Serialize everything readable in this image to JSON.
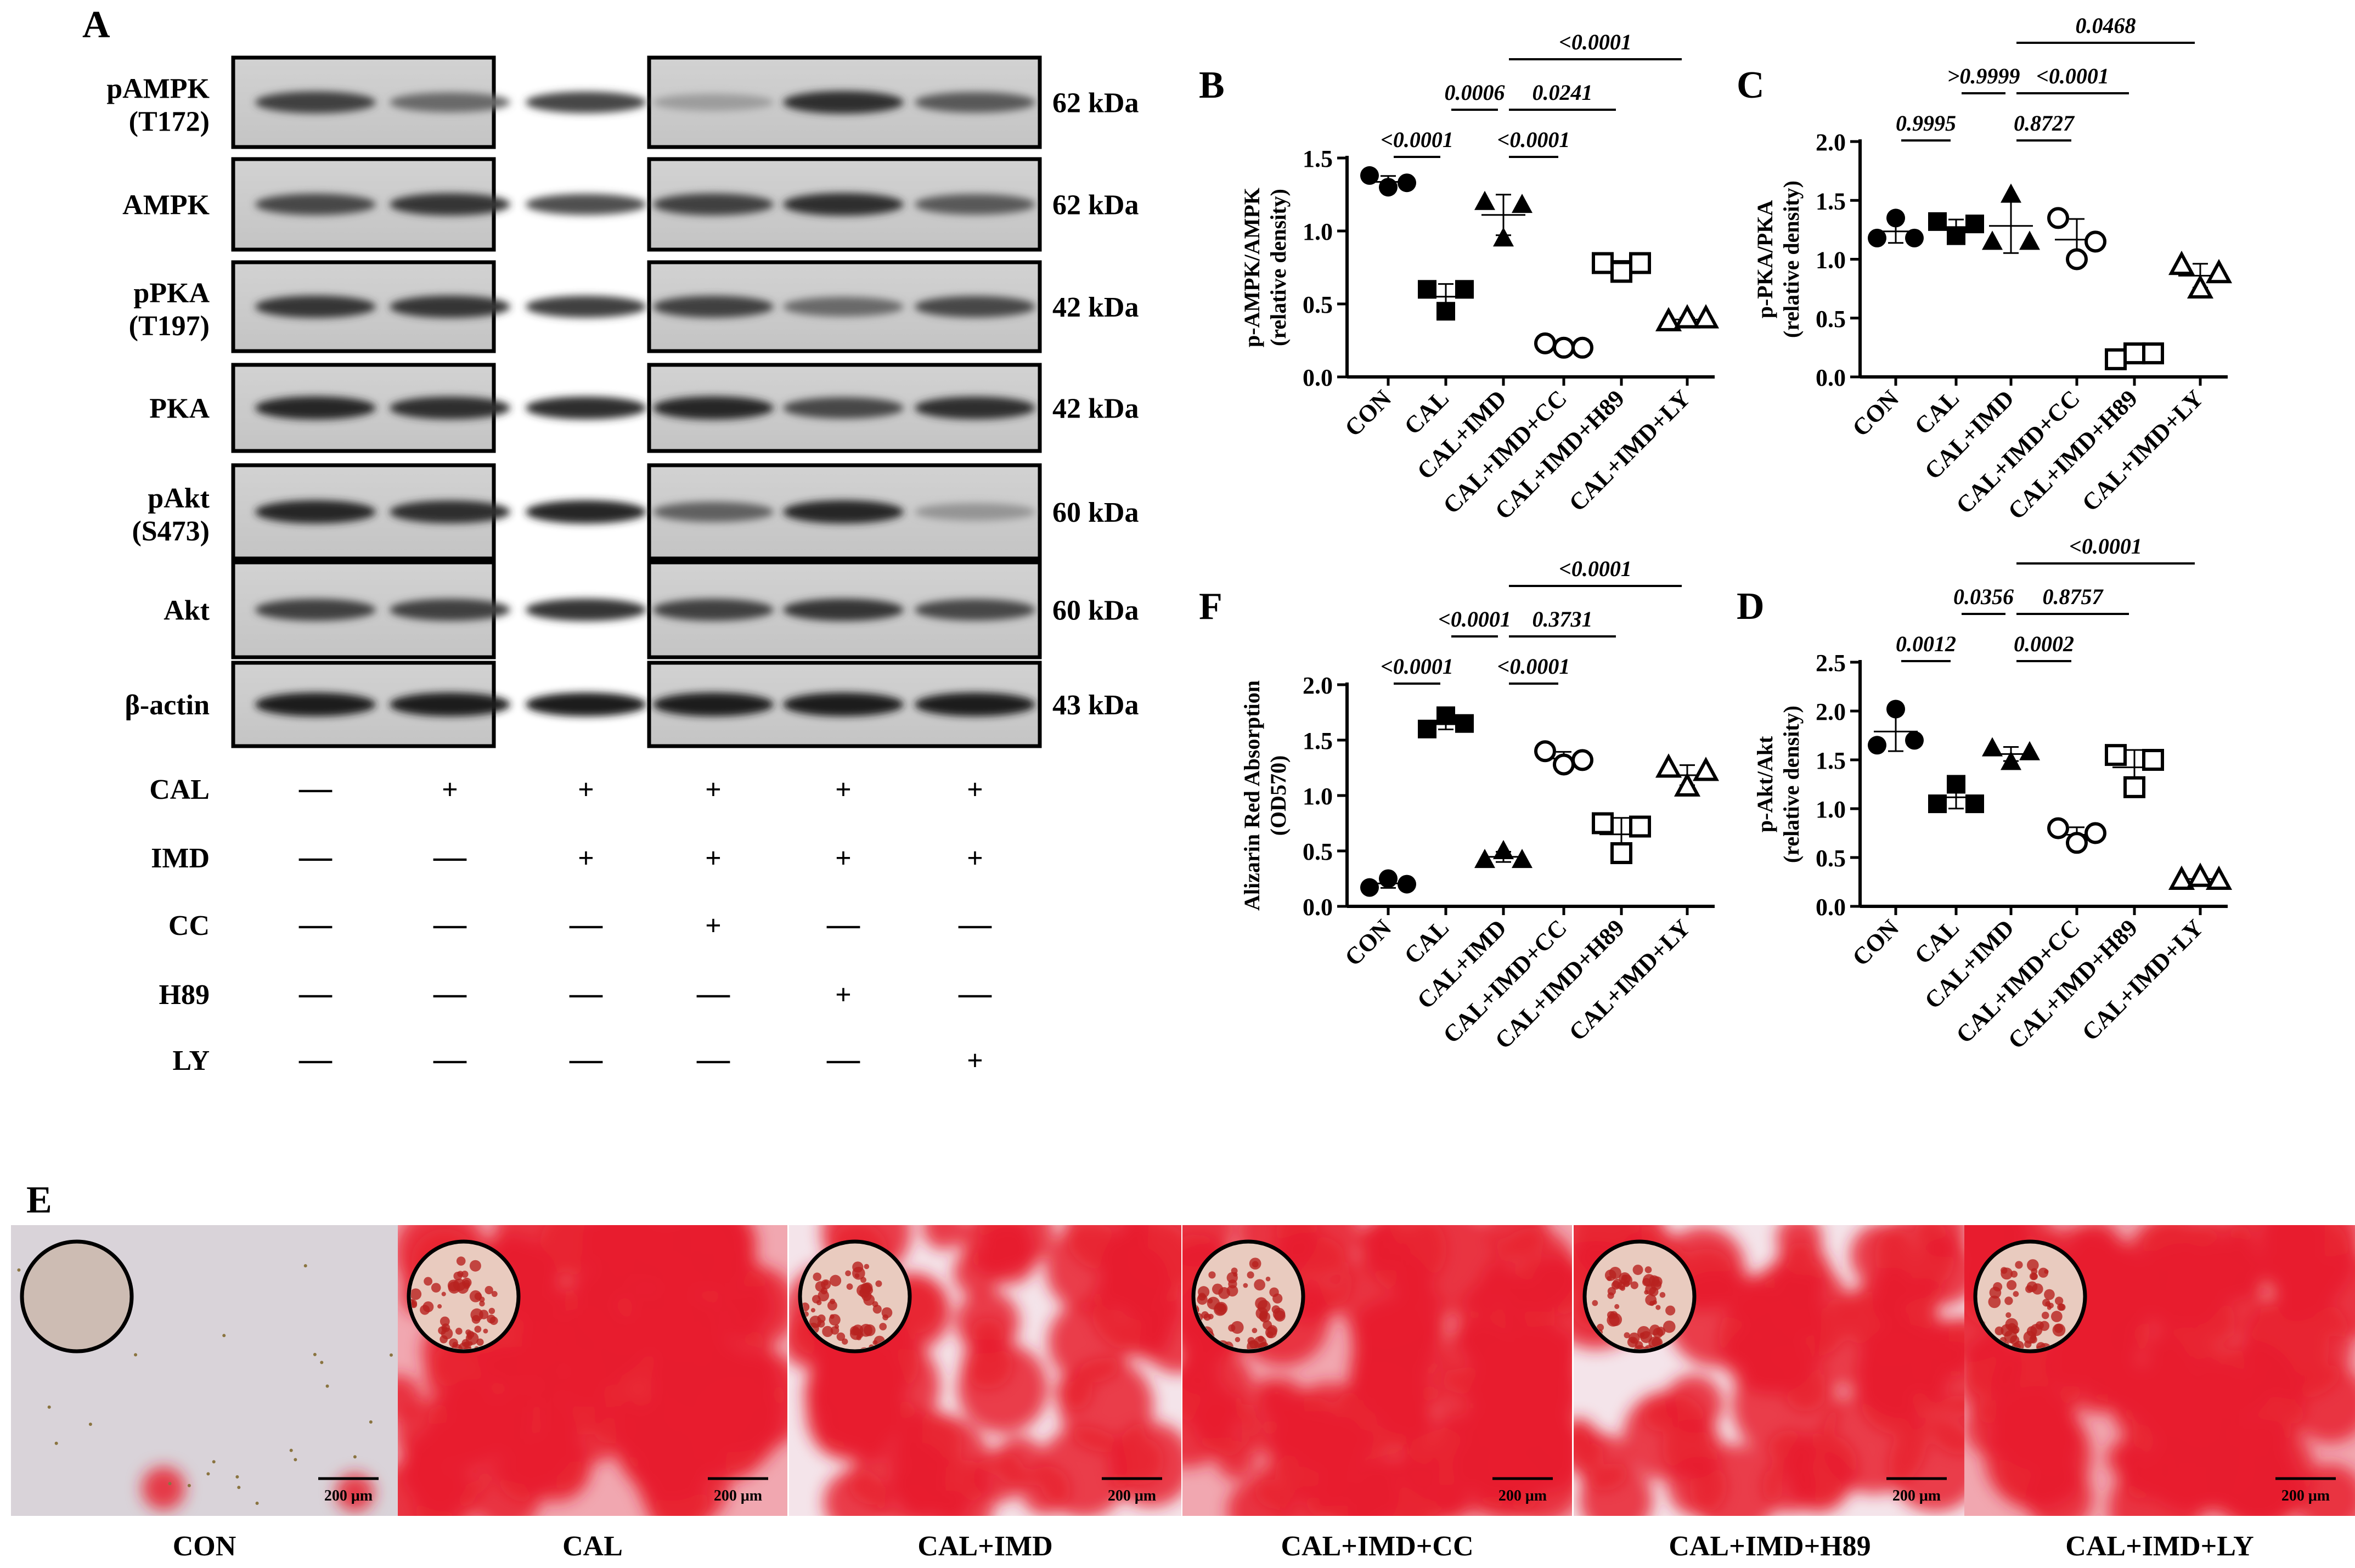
{
  "panel_letters": {
    "A": "A",
    "B": "B",
    "C": "C",
    "D": "D",
    "E": "E",
    "F": "F"
  },
  "blot": {
    "rows": [
      {
        "label": [
          "pAMPK",
          "(T172)"
        ],
        "kda": "62 kDa"
      },
      {
        "label": [
          "AMPK"
        ],
        "kda": "62 kDa"
      },
      {
        "label": [
          "pPKA",
          "(T197)"
        ],
        "kda": "42 kDa"
      },
      {
        "label": [
          "PKA"
        ],
        "kda": "42 kDa"
      },
      {
        "label": [
          "pAkt",
          "(S473)"
        ],
        "kda": "60 kDa"
      },
      {
        "label": [
          "Akt"
        ],
        "kda": "60 kDa"
      },
      {
        "label": [
          "β-actin"
        ],
        "kda": "43 kDa"
      }
    ],
    "treatments": [
      {
        "name": "CAL",
        "marks": [
          "—",
          "+",
          "+",
          "+",
          "+",
          "+"
        ]
      },
      {
        "name": "IMD",
        "marks": [
          "—",
          "—",
          "+",
          "+",
          "+",
          "+"
        ]
      },
      {
        "name": "CC",
        "marks": [
          "—",
          "—",
          "—",
          "+",
          "—",
          "—"
        ]
      },
      {
        "name": "H89",
        "marks": [
          "—",
          "—",
          "—",
          "—",
          "+",
          "—"
        ]
      },
      {
        "name": "LY",
        "marks": [
          "—",
          "—",
          "—",
          "—",
          "—",
          "+"
        ]
      }
    ]
  },
  "chart_data": [
    {
      "id": "B",
      "type": "scatter",
      "ylabel": [
        "p-AMPK/AMPK",
        "(relative density)"
      ],
      "ylim": [
        0,
        1.5
      ],
      "yticks": [
        "0.0",
        "0.5",
        "1.0",
        "1.5"
      ],
      "categories": [
        "CON",
        "CAL",
        "CAL+IMD",
        "CAL+IMD+CC",
        "CAL+IMD+H89",
        "CAL+IMD+LY"
      ],
      "markers": [
        "circle-filled",
        "square-filled",
        "triangle-filled",
        "circle-open",
        "square-open",
        "triangle-open"
      ],
      "values": [
        [
          1.38,
          1.3,
          1.33
        ],
        [
          0.6,
          0.45,
          0.6
        ],
        [
          1.2,
          0.95,
          1.18
        ],
        [
          0.23,
          0.2,
          0.2
        ],
        [
          0.78,
          0.72,
          0.78
        ],
        [
          0.38,
          0.4,
          0.4
        ]
      ],
      "comparisons": [
        {
          "from": 0,
          "to": 1,
          "label": "<0.0001"
        },
        {
          "from": 1,
          "to": 2,
          "label": "0.0006"
        },
        {
          "from": 2,
          "to": 3,
          "label": "<0.0001"
        },
        {
          "from": 2,
          "to": 4,
          "label": "0.0241"
        },
        {
          "from": 2,
          "to": 5,
          "label": "<0.0001"
        }
      ]
    },
    {
      "id": "C",
      "type": "scatter",
      "ylabel": [
        "p-PKA/PKA",
        "(relative density)"
      ],
      "ylim": [
        0,
        2.0
      ],
      "yticks": [
        "0.0",
        "0.5",
        "1.0",
        "1.5",
        "2.0"
      ],
      "categories": [
        "CON",
        "CAL",
        "CAL+IMD",
        "CAL+IMD+CC",
        "CAL+IMD+H89",
        "CAL+IMD+LY"
      ],
      "markers": [
        "circle-filled",
        "square-filled",
        "triangle-filled",
        "circle-open",
        "square-open",
        "triangle-open"
      ],
      "values": [
        [
          1.18,
          1.35,
          1.18
        ],
        [
          1.32,
          1.2,
          1.3
        ],
        [
          1.15,
          1.55,
          1.15
        ],
        [
          1.35,
          1.0,
          1.15
        ],
        [
          0.15,
          0.2,
          0.2
        ],
        [
          0.95,
          0.75,
          0.88
        ]
      ],
      "comparisons": [
        {
          "from": 0,
          "to": 1,
          "label": "0.9995"
        },
        {
          "from": 1,
          "to": 2,
          "label": ">0.9999"
        },
        {
          "from": 2,
          "to": 3,
          "label": "0.8727"
        },
        {
          "from": 2,
          "to": 4,
          "label": "<0.0001"
        },
        {
          "from": 2,
          "to": 5,
          "label": "0.0468"
        }
      ]
    },
    {
      "id": "F",
      "type": "scatter",
      "ylabel": [
        "Alizarin Red Absorption",
        "(OD570)"
      ],
      "ylim": [
        0,
        2.0
      ],
      "yticks": [
        "0.0",
        "0.5",
        "1.0",
        "1.5",
        "2.0"
      ],
      "categories": [
        "CON",
        "CAL",
        "CAL+IMD",
        "CAL+IMD+CC",
        "CAL+IMD+H89",
        "CAL+IMD+LY"
      ],
      "markers": [
        "circle-filled",
        "square-filled",
        "triangle-filled",
        "circle-open",
        "square-open",
        "triangle-open"
      ],
      "values": [
        [
          0.17,
          0.25,
          0.2
        ],
        [
          1.6,
          1.72,
          1.65
        ],
        [
          0.42,
          0.5,
          0.42
        ],
        [
          1.4,
          1.28,
          1.32
        ],
        [
          0.75,
          0.48,
          0.72
        ],
        [
          1.25,
          1.08,
          1.22
        ]
      ],
      "comparisons": [
        {
          "from": 0,
          "to": 1,
          "label": "<0.0001"
        },
        {
          "from": 1,
          "to": 2,
          "label": "<0.0001"
        },
        {
          "from": 2,
          "to": 3,
          "label": "<0.0001"
        },
        {
          "from": 2,
          "to": 4,
          "label": "0.3731"
        },
        {
          "from": 2,
          "to": 5,
          "label": "<0.0001"
        }
      ]
    },
    {
      "id": "D",
      "type": "scatter",
      "ylabel": [
        "p-Akt/Akt",
        "(relative density)"
      ],
      "ylim": [
        0,
        2.5
      ],
      "yticks": [
        "0.0",
        "0.5",
        "1.0",
        "1.5",
        "2.0",
        "2.5"
      ],
      "categories": [
        "CON",
        "CAL",
        "CAL+IMD",
        "CAL+IMD+CC",
        "CAL+IMD+H89",
        "CAL+IMD+LY"
      ],
      "markers": [
        "circle-filled",
        "square-filled",
        "triangle-filled",
        "circle-open",
        "square-open",
        "triangle-open"
      ],
      "values": [
        [
          1.65,
          2.02,
          1.7
        ],
        [
          1.05,
          1.25,
          1.05
        ],
        [
          1.62,
          1.48,
          1.58
        ],
        [
          0.8,
          0.65,
          0.75
        ],
        [
          1.55,
          1.22,
          1.5
        ],
        [
          0.27,
          0.3,
          0.27
        ]
      ],
      "comparisons": [
        {
          "from": 0,
          "to": 1,
          "label": "0.0012"
        },
        {
          "from": 1,
          "to": 2,
          "label": "0.0356"
        },
        {
          "from": 2,
          "to": 3,
          "label": "0.0002"
        },
        {
          "from": 2,
          "to": 4,
          "label": "0.8757"
        },
        {
          "from": 2,
          "to": 5,
          "label": "<0.0001"
        }
      ]
    }
  ],
  "staining": {
    "images": [
      {
        "caption": "CON",
        "stain": 0.02,
        "scale_bar": "200 μm"
      },
      {
        "caption": "CAL",
        "stain": 0.85,
        "scale_bar": "200 μm"
      },
      {
        "caption": "CAL+IMD",
        "stain": 0.55,
        "scale_bar": "200 μm"
      },
      {
        "caption": "CAL+IMD+CC",
        "stain": 0.9,
        "scale_bar": "200 μm"
      },
      {
        "caption": "CAL+IMD+H89",
        "stain": 0.6,
        "scale_bar": "200 μm"
      },
      {
        "caption": "CAL+IMD+LY",
        "stain": 0.95,
        "scale_bar": "200 μm"
      }
    ]
  },
  "colors": {
    "stain_red": "#e8202f",
    "background_pale": "#d8d2d8",
    "ink": "#000000"
  }
}
